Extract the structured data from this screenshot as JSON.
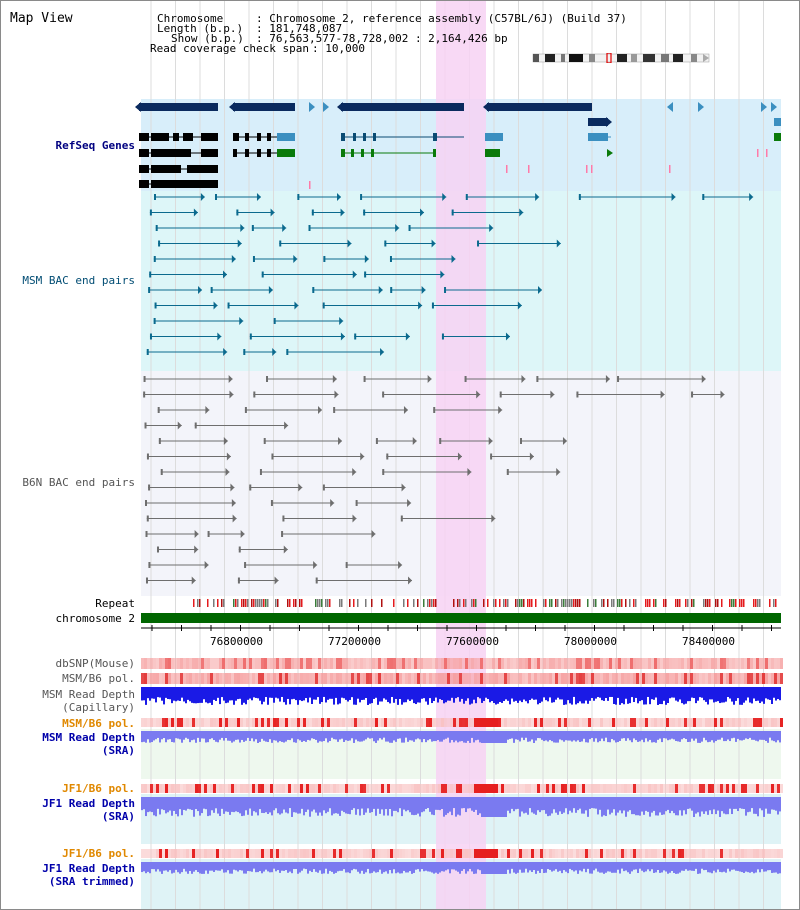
{
  "page": {
    "title": "Map View"
  },
  "header": {
    "chromosome_key": "Chromosome",
    "chromosome_value": ": Chromosome 2, reference assembly (C57BL/6J) (Build 37)",
    "length_key": "Length (b.p.)",
    "length_value": ": 181,748,087",
    "show_key": "Show (b.p.)",
    "show_value": ": 76,563,577-78,728,002 : 2,164,426 bp",
    "coverage_key": "Read coverage check span",
    "coverage_value": ": 10,000"
  },
  "tracks": {
    "refseq": "RefSeq Genes",
    "msm_bac": "MSM BAC end pairs",
    "b6n_bac": "B6N BAC end pairs",
    "repeat": "Repeat",
    "chromosome": "chromosome 2",
    "dbsnp": "dbSNP(Mouse)",
    "msm_b6_pol_1": "MSM/B6 pol.",
    "msm_read_depth_cap_1": "MSM Read Depth",
    "msm_read_depth_cap_2": "(Capillary)",
    "msm_b6_pol_2": "MSM/B6 pol.",
    "msm_read_depth_sra_1": "MSM Read Depth",
    "msm_read_depth_sra_2": "(SRA)",
    "jf1_b6_pol_1": "JF1/B6 pol.",
    "jf1_read_depth_sra_1": "JF1 Read Depth",
    "jf1_read_depth_sra_2": "(SRA)",
    "jf1_b6_pol_2": "JF1/B6 pol.",
    "jf1_read_depth_trim_1": "JF1 Read Depth",
    "jf1_read_depth_trim_2": "(SRA trimmed)"
  },
  "axis": {
    "ticks": [
      "76800000",
      "77200000",
      "77600000",
      "78000000",
      "78400000"
    ]
  },
  "colors": {
    "highlight": "#f7d2f3",
    "refseq_bg": "#d8eefa",
    "msm_bg": "#ddf6f8",
    "b6n_bg": "#f3f4fa",
    "chromosome": "#006600",
    "depth_dark": "#1a1ae6",
    "depth_light": "#7a7af0",
    "gene_dark": "#0a2a5e",
    "gene_mid": "#3b8fc0",
    "gene_green": "#0a7a0a",
    "bac_teal": "#0b6a8e",
    "bac_gray": "#6e6e6e"
  }
}
